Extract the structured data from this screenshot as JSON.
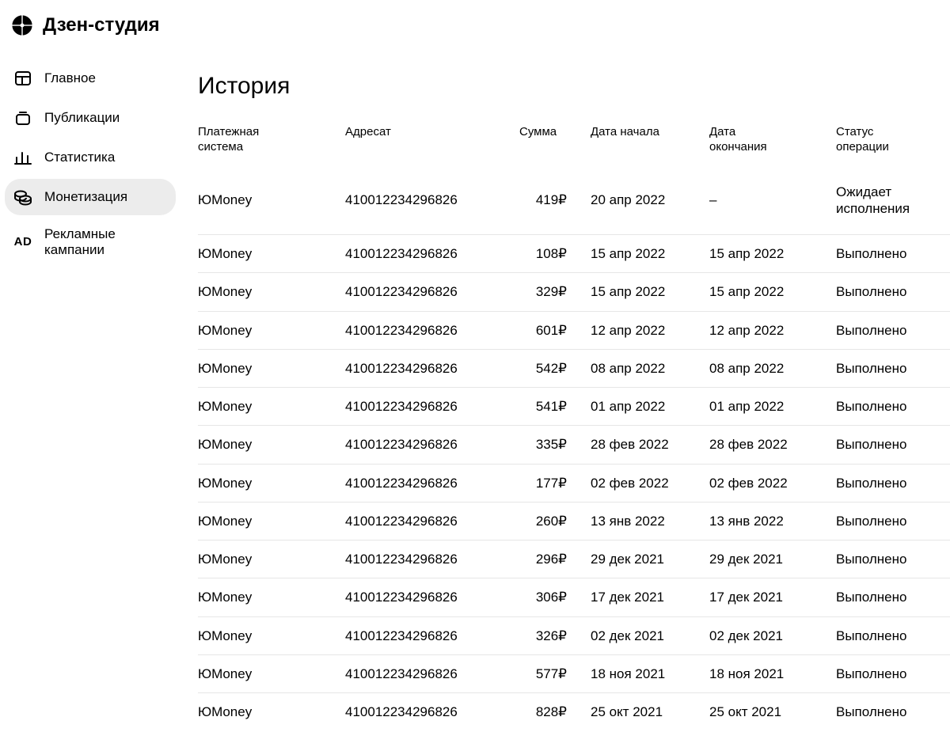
{
  "brand": "Дзен-студия",
  "sidebar": {
    "items": [
      {
        "label": "Главное"
      },
      {
        "label": "Публикации"
      },
      {
        "label": "Статистика"
      },
      {
        "label": "Монетизация"
      },
      {
        "label_line1": "Рекламные",
        "label_line2": "кампании"
      }
    ]
  },
  "page": {
    "title": "История"
  },
  "table": {
    "headers": {
      "system_l1": "Платежная",
      "system_l2": "система",
      "addressee": "Адресат",
      "amount": "Сумма",
      "start": "Дата начала",
      "end_l1": "Дата",
      "end_l2": "окончания",
      "status_l1": "Статус",
      "status_l2": "операции"
    },
    "rows": [
      {
        "system": "ЮMoney",
        "addr": "410012234296826",
        "sum": "419₽",
        "start": "20 апр 2022",
        "end": "–",
        "status_l1": "Ожидает",
        "status_l2": "исполнения"
      },
      {
        "system": "ЮMoney",
        "addr": "410012234296826",
        "sum": "108₽",
        "start": "15 апр 2022",
        "end": "15 апр 2022",
        "status": "Выполнено"
      },
      {
        "system": "ЮMoney",
        "addr": "410012234296826",
        "sum": "329₽",
        "start": "15 апр 2022",
        "end": "15 апр 2022",
        "status": "Выполнено"
      },
      {
        "system": "ЮMoney",
        "addr": "410012234296826",
        "sum": "601₽",
        "start": "12 апр 2022",
        "end": "12 апр 2022",
        "status": "Выполнено"
      },
      {
        "system": "ЮMoney",
        "addr": "410012234296826",
        "sum": "542₽",
        "start": "08 апр 2022",
        "end": "08 апр 2022",
        "status": "Выполнено"
      },
      {
        "system": "ЮMoney",
        "addr": "410012234296826",
        "sum": "541₽",
        "start": "01 апр 2022",
        "end": "01 апр 2022",
        "status": "Выполнено"
      },
      {
        "system": "ЮMoney",
        "addr": "410012234296826",
        "sum": "335₽",
        "start": "28 фев 2022",
        "end": "28 фев 2022",
        "status": "Выполнено"
      },
      {
        "system": "ЮMoney",
        "addr": "410012234296826",
        "sum": "177₽",
        "start": "02 фев 2022",
        "end": "02 фев 2022",
        "status": "Выполнено"
      },
      {
        "system": "ЮMoney",
        "addr": "410012234296826",
        "sum": "260₽",
        "start": "13 янв 2022",
        "end": "13 янв 2022",
        "status": "Выполнено"
      },
      {
        "system": "ЮMoney",
        "addr": "410012234296826",
        "sum": "296₽",
        "start": "29 дек 2021",
        "end": "29 дек 2021",
        "status": "Выполнено"
      },
      {
        "system": "ЮMoney",
        "addr": "410012234296826",
        "sum": "306₽",
        "start": "17 дек 2021",
        "end": "17 дек 2021",
        "status": "Выполнено"
      },
      {
        "system": "ЮMoney",
        "addr": "410012234296826",
        "sum": "326₽",
        "start": "02 дек 2021",
        "end": "02 дек 2021",
        "status": "Выполнено"
      },
      {
        "system": "ЮMoney",
        "addr": "410012234296826",
        "sum": "577₽",
        "start": "18 ноя 2021",
        "end": "18 ноя 2021",
        "status": "Выполнено"
      },
      {
        "system": "ЮMoney",
        "addr": "410012234296826",
        "sum": "828₽",
        "start": "25 окт 2021",
        "end": "25 окт 2021",
        "status": "Выполнено"
      }
    ]
  },
  "colors": {
    "row_border": "#e6e6e6",
    "sidebar_active_bg": "#ececec",
    "text": "#000000",
    "background": "#ffffff"
  }
}
